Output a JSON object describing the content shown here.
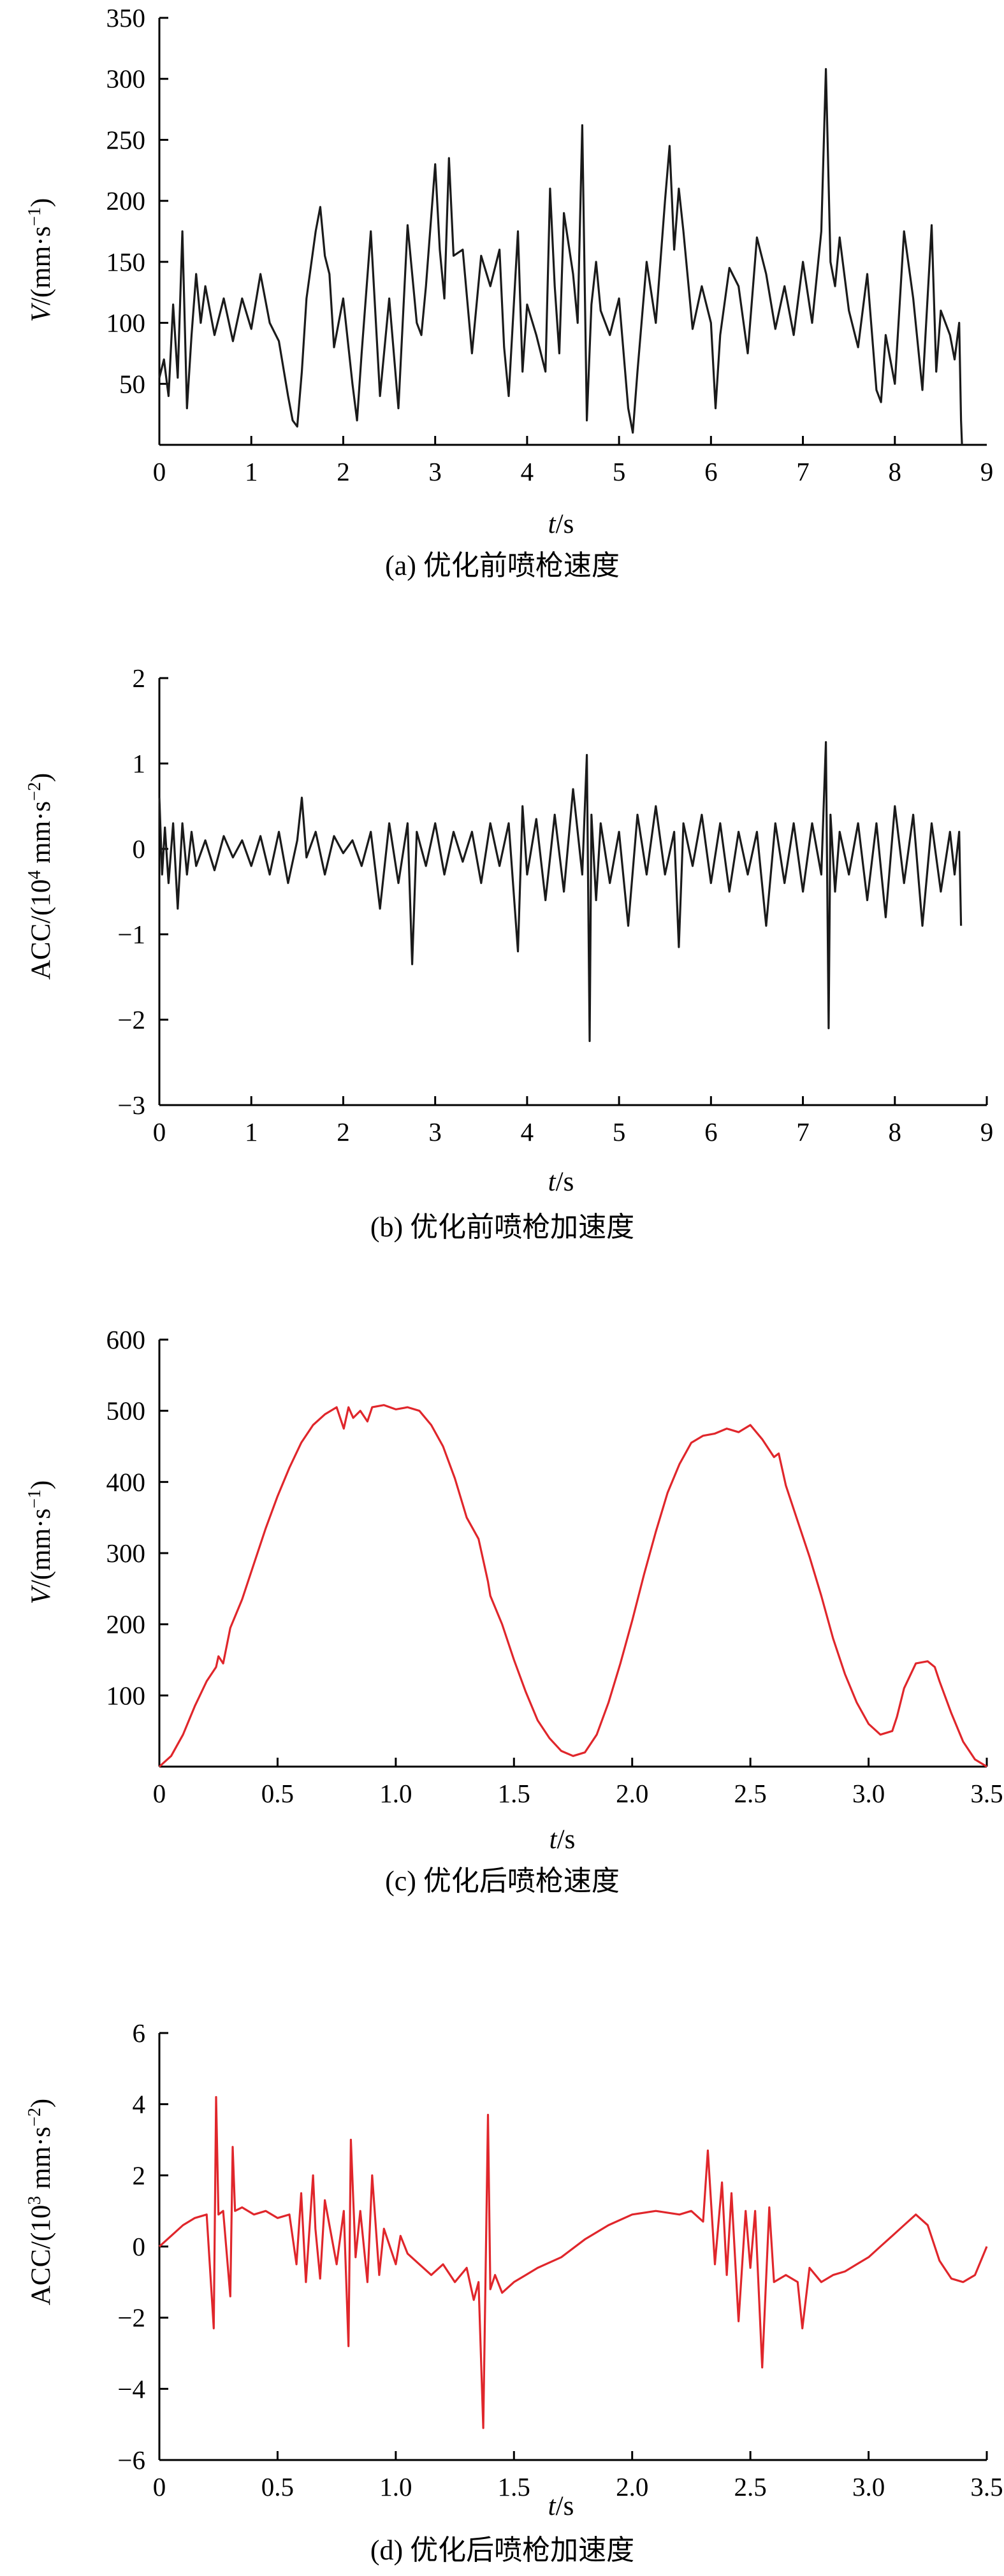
{
  "figure": {
    "panels": [
      {
        "caption": "(a) 优化前喷枪速度",
        "xlabel_italic": "t",
        "xlabel_rest": "/s",
        "ylabel_italic": "V",
        "ylabel_rest": "/(mm·s",
        "ylabel_sup": "−1",
        "ylabel_tail": ")"
      },
      {
        "caption": "(b) 优化前喷枪加速度",
        "xlabel_italic": "t",
        "xlabel_rest": "/s",
        "ylabel_italic": "",
        "ylabel_rest": "ACC/(10",
        "ylabel_sup": "4",
        "ylabel_tail": " mm·s",
        "ylabel_sup2": "−2",
        "ylabel_tail2": ")"
      },
      {
        "caption": "(c) 优化后喷枪速度",
        "xlabel_italic": "t",
        "xlabel_rest": "/s",
        "ylabel_italic": "V",
        "ylabel_rest": "/(mm·s",
        "ylabel_sup": "−1",
        "ylabel_tail": ")"
      },
      {
        "caption": "(d) 优化后喷枪加速度",
        "xlabel_italic": "t",
        "xlabel_rest": "/s",
        "ylabel_italic": "",
        "ylabel_rest": "ACC/(10",
        "ylabel_sup": "3",
        "ylabel_tail": " mm·s",
        "ylabel_sup2": "−2",
        "ylabel_tail2": ")"
      }
    ]
  },
  "chart_data": [
    {
      "type": "line",
      "title": "(a) 优化前喷枪速度",
      "xlabel": "t/s",
      "ylabel": "V/(mm·s−1)",
      "xlim": [
        0,
        9
      ],
      "ylim": [
        0,
        350
      ],
      "xticks": [
        "0",
        "1",
        "2",
        "3",
        "4",
        "5",
        "6",
        "7",
        "8",
        "9"
      ],
      "xtick_values": [
        0,
        1,
        2,
        3,
        4,
        5,
        6,
        7,
        8,
        9
      ],
      "yticks": [
        "50",
        "100",
        "150",
        "200",
        "250",
        "300",
        "350"
      ],
      "ytick_values": [
        50,
        100,
        150,
        200,
        250,
        300,
        350
      ],
      "show_x_tick_at_end": false,
      "line_color": "#1a1a1a",
      "series": [
        {
          "x": [
            0,
            0.05,
            0.1,
            0.15,
            0.2,
            0.25,
            0.3,
            0.35,
            0.4,
            0.45,
            0.5,
            0.55,
            0.6,
            0.7,
            0.8,
            0.9,
            1.0,
            1.1,
            1.2,
            1.3,
            1.4,
            1.45,
            1.5,
            1.55,
            1.6,
            1.7,
            1.75,
            1.8,
            1.85,
            1.9,
            2.0,
            2.1,
            2.15,
            2.2,
            2.3,
            2.4,
            2.5,
            2.6,
            2.7,
            2.75,
            2.8,
            2.85,
            2.9,
            3.0,
            3.05,
            3.1,
            3.15,
            3.2,
            3.3,
            3.4,
            3.5,
            3.6,
            3.7,
            3.75,
            3.8,
            3.9,
            3.95,
            4.0,
            4.1,
            4.2,
            4.25,
            4.3,
            4.35,
            4.4,
            4.5,
            4.55,
            4.6,
            4.65,
            4.7,
            4.75,
            4.8,
            4.9,
            5.0,
            5.1,
            5.15,
            5.2,
            5.3,
            5.4,
            5.5,
            5.55,
            5.6,
            5.65,
            5.7,
            5.8,
            5.9,
            6.0,
            6.05,
            6.1,
            6.2,
            6.3,
            6.4,
            6.5,
            6.6,
            6.7,
            6.8,
            6.9,
            7.0,
            7.1,
            7.2,
            7.25,
            7.3,
            7.35,
            7.4,
            7.5,
            7.6,
            7.7,
            7.8,
            7.85,
            7.9,
            8.0,
            8.1,
            8.2,
            8.3,
            8.4,
            8.45,
            8.5,
            8.6,
            8.65,
            8.7,
            8.72,
            8.73
          ],
          "y": [
            55,
            70,
            40,
            115,
            55,
            175,
            30,
            90,
            140,
            100,
            130,
            110,
            90,
            120,
            85,
            120,
            95,
            140,
            100,
            85,
            40,
            20,
            15,
            60,
            120,
            175,
            195,
            155,
            140,
            80,
            120,
            50,
            20,
            75,
            175,
            40,
            120,
            30,
            180,
            140,
            100,
            90,
            130,
            230,
            160,
            120,
            235,
            155,
            160,
            75,
            155,
            130,
            160,
            80,
            40,
            175,
            60,
            115,
            90,
            60,
            210,
            130,
            75,
            190,
            140,
            100,
            262,
            20,
            115,
            150,
            110,
            90,
            120,
            30,
            10,
            60,
            150,
            100,
            200,
            245,
            160,
            210,
            175,
            95,
            130,
            100,
            30,
            90,
            145,
            130,
            75,
            170,
            140,
            95,
            130,
            90,
            150,
            100,
            175,
            308,
            150,
            130,
            170,
            110,
            80,
            140,
            45,
            35,
            90,
            50,
            175,
            120,
            45,
            180,
            60,
            110,
            90,
            70,
            100,
            20,
            0
          ]
        }
      ]
    },
    {
      "type": "line",
      "title": "(b) 优化前喷枪加速度",
      "xlabel": "t/s",
      "ylabel": "ACC/(10^4 mm·s−2)",
      "xlim": [
        0,
        9
      ],
      "ylim": [
        -3,
        2
      ],
      "xticks": [
        "0",
        "1",
        "2",
        "3",
        "4",
        "5",
        "6",
        "7",
        "8",
        "9"
      ],
      "xtick_values": [
        0,
        1,
        2,
        3,
        4,
        5,
        6,
        7,
        8,
        9
      ],
      "yticks": [
        "−3",
        "−2",
        "−1",
        "0",
        "1",
        "2"
      ],
      "ytick_values": [
        -3,
        -2,
        -1,
        0,
        1,
        2
      ],
      "show_x_tick_at_end": true,
      "line_color": "#1a1a1a",
      "series": [
        {
          "x": [
            0,
            0.03,
            0.06,
            0.1,
            0.15,
            0.2,
            0.25,
            0.3,
            0.35,
            0.4,
            0.5,
            0.6,
            0.7,
            0.8,
            0.9,
            1.0,
            1.1,
            1.2,
            1.3,
            1.4,
            1.5,
            1.55,
            1.6,
            1.7,
            1.8,
            1.9,
            2.0,
            2.1,
            2.2,
            2.3,
            2.4,
            2.5,
            2.6,
            2.7,
            2.75,
            2.8,
            2.9,
            3.0,
            3.1,
            3.2,
            3.3,
            3.4,
            3.5,
            3.6,
            3.7,
            3.8,
            3.9,
            3.95,
            4.0,
            4.1,
            4.2,
            4.3,
            4.4,
            4.5,
            4.6,
            4.65,
            4.68,
            4.7,
            4.75,
            4.8,
            4.9,
            5.0,
            5.1,
            5.2,
            5.3,
            5.4,
            5.5,
            5.6,
            5.65,
            5.7,
            5.8,
            5.9,
            6.0,
            6.1,
            6.2,
            6.3,
            6.4,
            6.5,
            6.6,
            6.7,
            6.8,
            6.9,
            7.0,
            7.1,
            7.2,
            7.25,
            7.28,
            7.3,
            7.35,
            7.4,
            7.5,
            7.6,
            7.7,
            7.8,
            7.9,
            8.0,
            8.1,
            8.2,
            8.3,
            8.4,
            8.5,
            8.6,
            8.65,
            8.7,
            8.72
          ],
          "y": [
            0.6,
            -0.3,
            0.25,
            -0.4,
            0.3,
            -0.7,
            0.3,
            -0.3,
            0.2,
            -0.2,
            0.1,
            -0.25,
            0.15,
            -0.1,
            0.1,
            -0.2,
            0.15,
            -0.3,
            0.2,
            -0.4,
            0.1,
            0.6,
            -0.1,
            0.2,
            -0.3,
            0.15,
            -0.05,
            0.1,
            -0.2,
            0.2,
            -0.7,
            0.3,
            -0.4,
            0.3,
            -1.35,
            0.2,
            -0.2,
            0.3,
            -0.3,
            0.2,
            -0.15,
            0.2,
            -0.4,
            0.3,
            -0.2,
            0.3,
            -1.2,
            0.5,
            -0.3,
            0.35,
            -0.6,
            0.4,
            -0.5,
            0.7,
            -0.3,
            1.1,
            -2.25,
            0.4,
            -0.6,
            0.3,
            -0.4,
            0.2,
            -0.9,
            0.4,
            -0.3,
            0.5,
            -0.3,
            0.2,
            -1.15,
            0.3,
            -0.2,
            0.4,
            -0.4,
            0.3,
            -0.5,
            0.2,
            -0.3,
            0.2,
            -0.9,
            0.3,
            -0.4,
            0.3,
            -0.5,
            0.3,
            -0.3,
            1.25,
            -2.1,
            0.4,
            -0.5,
            0.2,
            -0.3,
            0.3,
            -0.6,
            0.3,
            -0.8,
            0.5,
            -0.4,
            0.4,
            -0.9,
            0.3,
            -0.5,
            0.2,
            -0.3,
            0.2,
            -0.9
          ]
        }
      ]
    },
    {
      "type": "line",
      "title": "(c) 优化后喷枪速度",
      "xlabel": "t/s",
      "ylabel": "V/(mm·s−1)",
      "xlim": [
        0,
        3.5
      ],
      "ylim": [
        0,
        600
      ],
      "xticks": [
        "0",
        "0.5",
        "1.0",
        "1.5",
        "2.0",
        "2.5",
        "3.0",
        "3.5"
      ],
      "xtick_values": [
        0,
        0.5,
        1.0,
        1.5,
        2.0,
        2.5,
        3.0,
        3.5
      ],
      "yticks": [
        "100",
        "200",
        "300",
        "400",
        "500",
        "600"
      ],
      "ytick_values": [
        100,
        200,
        300,
        400,
        500,
        600
      ],
      "show_x_tick_at_end": true,
      "line_color": "#e0262b",
      "series": [
        {
          "x": [
            0,
            0.05,
            0.1,
            0.15,
            0.2,
            0.24,
            0.25,
            0.27,
            0.3,
            0.35,
            0.4,
            0.45,
            0.5,
            0.55,
            0.6,
            0.65,
            0.7,
            0.75,
            0.78,
            0.8,
            0.82,
            0.85,
            0.88,
            0.9,
            0.95,
            1.0,
            1.05,
            1.1,
            1.15,
            1.2,
            1.25,
            1.3,
            1.35,
            1.38,
            1.39,
            1.4,
            1.45,
            1.5,
            1.55,
            1.6,
            1.65,
            1.7,
            1.75,
            1.8,
            1.85,
            1.9,
            1.95,
            2.0,
            2.05,
            2.1,
            2.15,
            2.2,
            2.25,
            2.3,
            2.35,
            2.4,
            2.45,
            2.5,
            2.55,
            2.6,
            2.62,
            2.65,
            2.7,
            2.75,
            2.8,
            2.85,
            2.9,
            2.95,
            3.0,
            3.05,
            3.1,
            3.12,
            3.15,
            3.2,
            3.25,
            3.28,
            3.3,
            3.35,
            3.4,
            3.45,
            3.5
          ],
          "y": [
            0,
            15,
            45,
            85,
            120,
            140,
            155,
            145,
            195,
            235,
            285,
            335,
            380,
            420,
            455,
            480,
            495,
            505,
            475,
            505,
            490,
            500,
            485,
            505,
            508,
            502,
            505,
            500,
            480,
            450,
            405,
            350,
            320,
            275,
            260,
            240,
            200,
            150,
            105,
            65,
            40,
            22,
            15,
            20,
            45,
            90,
            145,
            205,
            270,
            330,
            385,
            425,
            455,
            465,
            468,
            475,
            470,
            480,
            460,
            435,
            440,
            395,
            345,
            295,
            240,
            180,
            130,
            90,
            60,
            45,
            50,
            70,
            110,
            145,
            148,
            140,
            120,
            75,
            35,
            10,
            0
          ]
        }
      ]
    },
    {
      "type": "line",
      "title": "(d) 优化后喷枪加速度",
      "xlabel": "t/s",
      "ylabel": "ACC/(10^3 mm·s−2)",
      "xlim": [
        0,
        3.5
      ],
      "ylim": [
        -6,
        6
      ],
      "xticks": [
        "0",
        "0.5",
        "1.0",
        "1.5",
        "2.0",
        "2.5",
        "3.0",
        "3.5"
      ],
      "xtick_values": [
        0,
        0.5,
        1.0,
        1.5,
        2.0,
        2.5,
        3.0,
        3.5
      ],
      "yticks": [
        "−6",
        "−4",
        "−2",
        "0",
        "2",
        "4",
        "6"
      ],
      "ytick_values": [
        -6,
        -4,
        -2,
        0,
        2,
        4,
        6
      ],
      "show_x_tick_at_end": true,
      "line_color": "#e0262b",
      "series": [
        {
          "x": [
            0,
            0.05,
            0.1,
            0.15,
            0.2,
            0.23,
            0.24,
            0.25,
            0.27,
            0.3,
            0.31,
            0.32,
            0.35,
            0.4,
            0.45,
            0.5,
            0.55,
            0.58,
            0.6,
            0.62,
            0.65,
            0.66,
            0.68,
            0.7,
            0.75,
            0.78,
            0.8,
            0.81,
            0.83,
            0.85,
            0.88,
            0.9,
            0.93,
            0.95,
            1.0,
            1.02,
            1.05,
            1.1,
            1.15,
            1.2,
            1.25,
            1.3,
            1.33,
            1.35,
            1.37,
            1.39,
            1.4,
            1.42,
            1.45,
            1.5,
            1.55,
            1.6,
            1.7,
            1.8,
            1.9,
            2.0,
            2.1,
            2.2,
            2.25,
            2.3,
            2.32,
            2.35,
            2.38,
            2.4,
            2.42,
            2.45,
            2.48,
            2.5,
            2.52,
            2.55,
            2.58,
            2.6,
            2.65,
            2.7,
            2.72,
            2.75,
            2.8,
            2.85,
            2.9,
            2.95,
            3.0,
            3.05,
            3.1,
            3.15,
            3.2,
            3.25,
            3.3,
            3.35,
            3.4,
            3.45,
            3.5
          ],
          "y": [
            0,
            0.3,
            0.6,
            0.8,
            0.9,
            -2.3,
            4.2,
            0.9,
            1.0,
            -1.4,
            2.8,
            1.0,
            1.1,
            0.9,
            1.0,
            0.8,
            0.9,
            -0.5,
            1.5,
            -1.0,
            2.0,
            0.5,
            -0.9,
            1.3,
            -0.5,
            1.0,
            -2.8,
            3.0,
            -0.3,
            1.0,
            -1.0,
            2.0,
            -0.8,
            0.5,
            -0.5,
            0.3,
            -0.2,
            -0.5,
            -0.8,
            -0.5,
            -1.0,
            -0.6,
            -1.5,
            -1.0,
            -5.1,
            3.7,
            -1.2,
            -0.8,
            -1.3,
            -1.0,
            -0.8,
            -0.6,
            -0.3,
            0.2,
            0.6,
            0.9,
            1.0,
            0.9,
            1.0,
            0.7,
            2.7,
            -0.5,
            1.8,
            -0.8,
            1.5,
            -2.1,
            1.0,
            -0.6,
            1.0,
            -3.4,
            1.1,
            -1.0,
            -0.8,
            -1.0,
            -2.3,
            -0.6,
            -1.0,
            -0.8,
            -0.7,
            -0.5,
            -0.3,
            0.0,
            0.3,
            0.6,
            0.9,
            0.6,
            -0.4,
            -0.9,
            -1.0,
            -0.8,
            0.0
          ]
        }
      ]
    }
  ]
}
